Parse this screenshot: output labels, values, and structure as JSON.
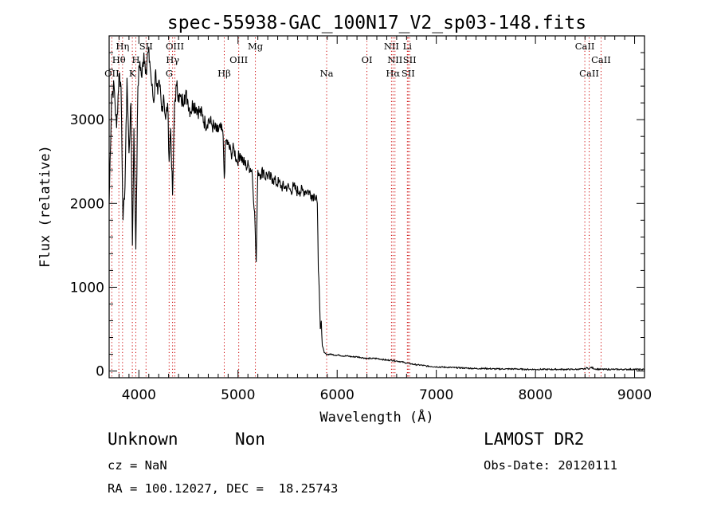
{
  "footer": {
    "class_name": "Unknown",
    "subclass": "Non",
    "cz": "cz = NaN",
    "coords": "RA = 100.12027, DEC =  18.25743",
    "survey": "LAMOST DR2",
    "obs_date": "Obs-Date: 20120111"
  },
  "chart_data": {
    "type": "line",
    "title": "spec-55938-GAC_100N17_V2_sp03-148.fits",
    "xlabel": "Wavelength (Å)",
    "ylabel": "Flux (relative)",
    "xlim": [
      3700,
      9100
    ],
    "ylim": [
      -80,
      4000
    ],
    "xticks": [
      4000,
      5000,
      6000,
      7000,
      8000,
      9000
    ],
    "yticks": [
      0,
      1000,
      2000,
      3000
    ],
    "grid": false,
    "line_color": "#000000",
    "marker_color": "#cc0000",
    "spectral_lines": [
      {
        "label": "OII",
        "wavelength": 3727,
        "row": 3
      },
      {
        "label": "Hθ",
        "wavelength": 3798,
        "row": 2
      },
      {
        "label": "Hη",
        "wavelength": 3835,
        "row": 1
      },
      {
        "label": "K",
        "wavelength": 3934,
        "row": 3
      },
      {
        "label": "H",
        "wavelength": 3969,
        "row": 2
      },
      {
        "label": "SII",
        "wavelength": 4072,
        "row": 1
      },
      {
        "label": "G",
        "wavelength": 4305,
        "row": 3
      },
      {
        "label": "Hγ",
        "wavelength": 4340,
        "row": 2
      },
      {
        "label": "OIII",
        "wavelength": 4363,
        "row": 1
      },
      {
        "label": "Hβ",
        "wavelength": 4861,
        "row": 3
      },
      {
        "label": "OIII",
        "wavelength": 5007,
        "row": 2
      },
      {
        "label": "Mg",
        "wavelength": 5175,
        "row": 1
      },
      {
        "label": "Na",
        "wavelength": 5894,
        "row": 3
      },
      {
        "label": "OI",
        "wavelength": 6300,
        "row": 2
      },
      {
        "label": "NII",
        "wavelength": 6548,
        "row": 1
      },
      {
        "label": "Hα",
        "wavelength": 6563,
        "row": 3
      },
      {
        "label": "NII",
        "wavelength": 6583,
        "row": 2
      },
      {
        "label": "Li",
        "wavelength": 6708,
        "row": 1
      },
      {
        "label": "SII",
        "wavelength": 6716,
        "row": 3
      },
      {
        "label": "SII",
        "wavelength": 6731,
        "row": 2
      },
      {
        "label": "CaII",
        "wavelength": 8498,
        "row": 1
      },
      {
        "label": "CaII",
        "wavelength": 8542,
        "row": 3
      },
      {
        "label": "CaII",
        "wavelength": 8662,
        "row": 2
      }
    ],
    "series": [
      {
        "x": [
          3700,
          3725,
          3750,
          3775,
          3800,
          3820,
          3840,
          3860,
          3880,
          3900,
          3920,
          3935,
          3950,
          3969,
          3990,
          4010,
          4030,
          4050,
          4072,
          4090,
          4110,
          4130,
          4150,
          4170,
          4190,
          4210,
          4230,
          4250,
          4270,
          4290,
          4305,
          4320,
          4340,
          4360,
          4380,
          4400,
          4430,
          4460,
          4490,
          4520,
          4550,
          4580,
          4610,
          4640,
          4670,
          4700,
          4730,
          4760,
          4790,
          4820,
          4850,
          4861,
          4875,
          4900,
          4930,
          4960,
          4990,
          5020,
          5050,
          5080,
          5110,
          5140,
          5167,
          5183,
          5200,
          5230,
          5260,
          5270,
          5290,
          5320,
          5350,
          5380,
          5410,
          5440,
          5470,
          5500,
          5530,
          5560,
          5590,
          5620,
          5650,
          5680,
          5710,
          5740,
          5770,
          5790,
          5800,
          5810,
          5820,
          5830,
          5840,
          5850,
          5870,
          5890,
          5910,
          5940,
          5980,
          6020,
          6060,
          6100,
          6150,
          6200,
          6250,
          6300,
          6350,
          6400,
          6450,
          6500,
          6550,
          6600,
          6650,
          6700,
          6750,
          6800,
          6850,
          6900,
          6950,
          7000,
          7100,
          7200,
          7300,
          7400,
          7500,
          7600,
          7700,
          7800,
          7900,
          8000,
          8100,
          8200,
          8300,
          8400,
          8498,
          8520,
          8542,
          8560,
          8600,
          8662,
          8700,
          8800,
          8900,
          9000,
          9100
        ],
        "y": [
          2000,
          3300,
          3400,
          2900,
          3550,
          3400,
          1800,
          2200,
          3500,
          2600,
          3200,
          1500,
          2900,
          1450,
          3400,
          3700,
          3500,
          3800,
          3600,
          3800,
          3700,
          3400,
          3200,
          3600,
          3300,
          3400,
          3100,
          3300,
          3000,
          3200,
          2500,
          2900,
          2100,
          3200,
          3400,
          3300,
          3200,
          3300,
          3250,
          3100,
          3200,
          3150,
          3100,
          3050,
          2950,
          3000,
          2950,
          2900,
          2850,
          2900,
          2800,
          2300,
          2750,
          2700,
          2600,
          2650,
          2500,
          2600,
          2500,
          2450,
          2450,
          2400,
          1900,
          1300,
          2400,
          2350,
          2400,
          2300,
          2350,
          2300,
          2300,
          2250,
          2250,
          2200,
          2200,
          2200,
          2150,
          2200,
          2150,
          2150,
          2150,
          2150,
          2150,
          2100,
          2100,
          2100,
          2000,
          1200,
          950,
          500,
          600,
          300,
          220,
          200,
          200,
          200,
          190,
          190,
          180,
          180,
          170,
          170,
          160,
          150,
          150,
          150,
          140,
          130,
          130,
          120,
          110,
          95,
          85,
          75,
          70,
          60,
          55,
          50,
          45,
          40,
          35,
          30,
          30,
          25,
          25,
          25,
          20,
          20,
          20,
          20,
          20,
          20,
          25,
          40,
          25,
          45,
          25,
          20,
          20,
          20,
          20,
          20,
          20
        ]
      }
    ]
  }
}
